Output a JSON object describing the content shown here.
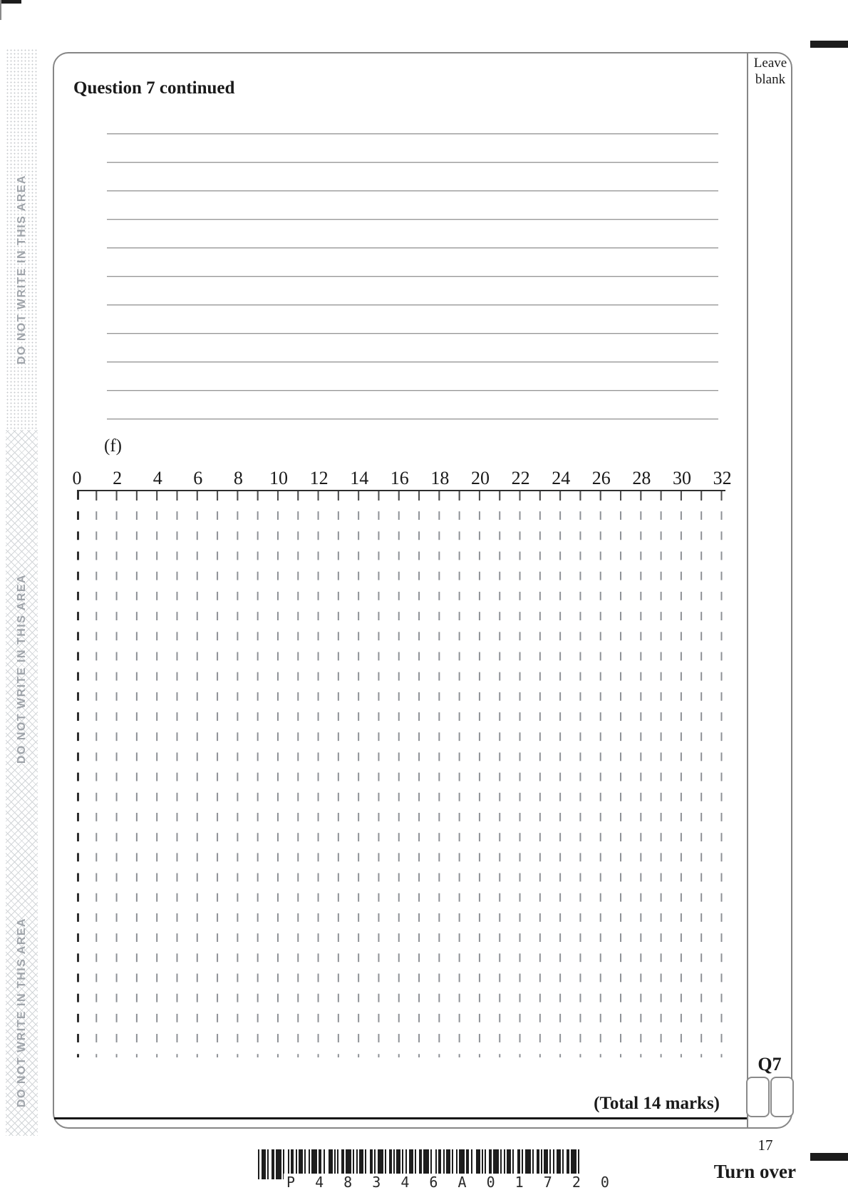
{
  "header": {
    "question_heading": "Question 7 continued",
    "leave_blank": "Leave blank"
  },
  "margin": {
    "warning_text": "DO NOT WRITE IN THIS AREA"
  },
  "body": {
    "part_label": "(f)",
    "answer_line_count": 11,
    "total_marks": "(Total 14 marks)",
    "question_ref": "Q7"
  },
  "graph_grid": {
    "type": "blank-plotting-grid",
    "x_tick_labels": [
      "0",
      "2",
      "4",
      "6",
      "8",
      "10",
      "12",
      "14",
      "16",
      "18",
      "20",
      "22",
      "24",
      "26",
      "28",
      "30",
      "32"
    ],
    "x_min": 0,
    "x_max": 32,
    "major_step": 2,
    "minor_step": 1,
    "plotted_data": "none"
  },
  "footer": {
    "page_number": "17",
    "turn_over": "Turn over",
    "barcode_text": "P 4 8 3 4 6 A 0 1 7 2 0"
  },
  "colors": {
    "border_gray": "#868686",
    "answer_line_gray": "#969696",
    "grid_dash_gray": "#8d9095",
    "axis_black": "#2e2e2e",
    "margin_text_gray": "#9fa4aa",
    "ink_black": "#1a1a1a"
  }
}
